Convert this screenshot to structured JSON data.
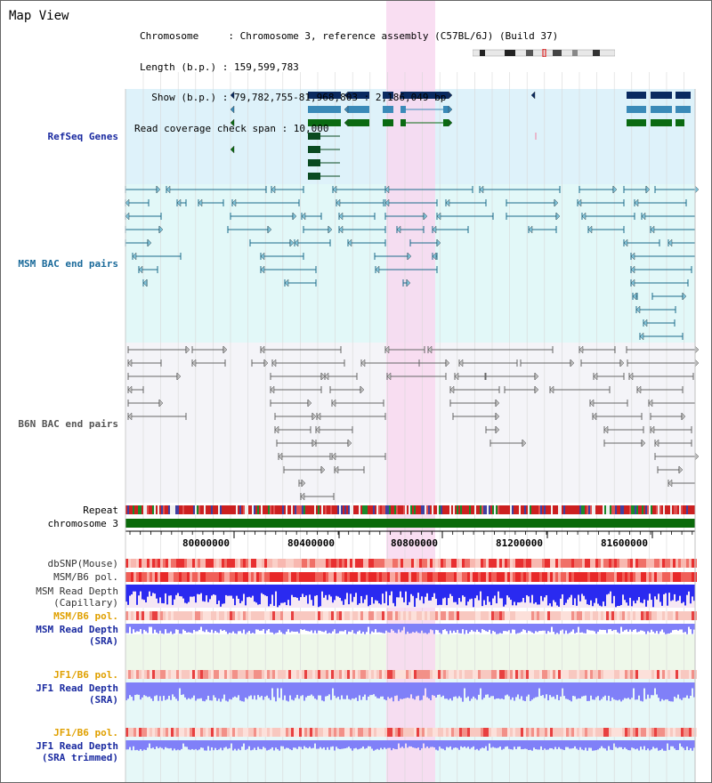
{
  "title": "Map View",
  "header": {
    "line1": "Chromosome     : Chromosome 3, reference assembly (C57BL/6J) (Build 37)",
    "line2": "Length (b.p.) : 159,599,783",
    "line3": "  Show (b.p.) : 79,782,755-81,968,803 : 2,186,049 bp",
    "line4": "Read coverage check span : 10,000"
  },
  "tracks": {
    "refseq": "RefSeq Genes",
    "msm_bac": "MSM BAC end pairs",
    "b6n_bac": "B6N BAC end pairs",
    "repeat": "Repeat",
    "chromosome": "chromosome 3",
    "dbsnp": "dbSNP(Mouse)",
    "msm_b6_pol": "MSM/B6 pol.",
    "msm_read_depth_cap_1": "MSM Read Depth",
    "msm_read_depth_cap_2": "(Capillary)",
    "msm_b6_pol_2": "MSM/B6 pol.",
    "msm_read_depth_sra_1": "MSM Read Depth",
    "msm_read_depth_sra_2": "(SRA)",
    "jf1_b6_pol": "JF1/B6 pol.",
    "jf1_read_depth_1": "JF1 Read Depth",
    "jf1_read_depth_2": "(SRA)",
    "jf1_b6_pol_2": "JF1/B6 pol.",
    "jf1_read_depth_trim_1": "JF1 Read Depth",
    "jf1_read_depth_trim_2": "(SRA trimmed)"
  },
  "axis": {
    "ticks": [
      "80000000",
      "80400000",
      "80800000",
      "81200000",
      "81600000"
    ]
  },
  "colors": {
    "refseq_bg": "#def2fa",
    "msm_bg": "#e2f8f8",
    "b6n_bg": "#f4f4f8",
    "highlight": "#f8d8f0",
    "gene_dark": "#0a2a60",
    "gene_mid": "#3a8ab8",
    "gene_green": "#0a6a12",
    "msm_line": "#1a6a8a",
    "b6n_line": "#666666",
    "label_blue": "#1a2aa0",
    "label_teal": "#1a6a9a",
    "label_orange": "#e0a000",
    "chromosome": "#0a6a0a",
    "depth_blue": "#2a2af0",
    "depth_light": "#8080f8"
  }
}
